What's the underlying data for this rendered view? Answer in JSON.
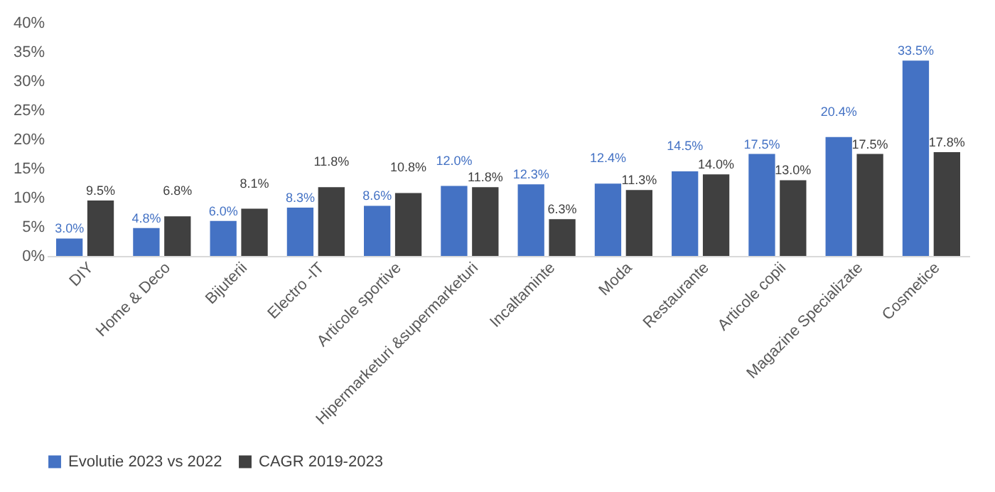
{
  "chart_data": {
    "type": "bar",
    "categories": [
      "DIY",
      "Home & Deco",
      "Bijuterii",
      "Electro -IT",
      "Articole sportive",
      "Hipermarketuri &supermarketuri",
      "Incaltaminte",
      "Moda",
      "Restaurante",
      "Articole copii",
      "Magazine Specializate",
      "Cosmetice"
    ],
    "series": [
      {
        "name": "Evolutie 2023 vs 2022",
        "color": "#4472c4",
        "values": [
          3.0,
          4.8,
          6.0,
          8.3,
          8.6,
          12.0,
          12.3,
          12.4,
          14.5,
          17.5,
          20.4,
          33.5
        ],
        "value_labels": [
          "3.0%",
          "4.8%",
          "6.0%",
          "8.3%",
          "8.6%",
          "12.0%",
          "12.3%",
          "12.4%",
          "14.5%",
          "17.5%",
          "20.4%",
          "33.5%"
        ]
      },
      {
        "name": "CAGR 2019-2023",
        "color": "#404040",
        "values": [
          9.5,
          6.8,
          8.1,
          11.8,
          10.8,
          11.8,
          6.3,
          11.3,
          14.0,
          13.0,
          17.5,
          17.8
        ],
        "value_labels": [
          "9.5%",
          "6.8%",
          "8.1%",
          "11.8%",
          "10.8%",
          "11.8%",
          "6.3%",
          "11.3%",
          "14.0%",
          "13.0%",
          "17.5%",
          "17.8%"
        ]
      }
    ],
    "ylim": [
      0,
      40
    ],
    "yticks": [
      {
        "value": 0,
        "label": "0%"
      },
      {
        "value": 5,
        "label": "5%"
      },
      {
        "value": 10,
        "label": "10%"
      },
      {
        "value": 15,
        "label": "15%"
      },
      {
        "value": 20,
        "label": "20%"
      },
      {
        "value": 25,
        "label": "25%"
      },
      {
        "value": 30,
        "label": "30%"
      },
      {
        "value": 35,
        "label": "35%"
      },
      {
        "value": 40,
        "label": "40%"
      }
    ],
    "grid": false,
    "legend": "bottom"
  }
}
